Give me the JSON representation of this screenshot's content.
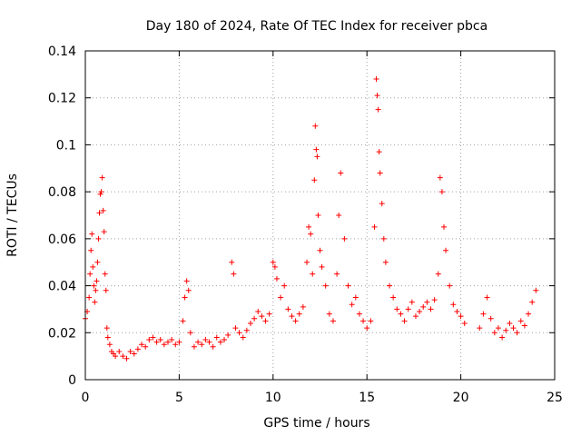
{
  "chart_data": {
    "type": "scatter",
    "title": "Day 180 of 2024, Rate Of TEC Index for receiver pbca",
    "xlabel": "GPS time / hours",
    "ylabel": "ROTI / TECUs",
    "xlim": [
      0,
      25
    ],
    "ylim": [
      0,
      0.14
    ],
    "x_ticks": [
      0,
      5,
      10,
      15,
      20,
      25
    ],
    "x_tick_labels": [
      "0",
      "5",
      "10",
      "15",
      "20",
      "25"
    ],
    "y_ticks": [
      0,
      0.02,
      0.04,
      0.06,
      0.08,
      0.1,
      0.12,
      0.14
    ],
    "y_tick_labels": [
      "0",
      "0.02",
      "0.04",
      "0.06",
      "0.08",
      "0.1",
      "0.12",
      "0.14"
    ],
    "grid": true,
    "marker": "+",
    "color": "#ff0000",
    "series": [
      {
        "name": "ROTI",
        "x": [
          0.0,
          0.1,
          0.2,
          0.25,
          0.3,
          0.35,
          0.4,
          0.45,
          0.5,
          0.55,
          0.6,
          0.65,
          0.7,
          0.75,
          0.8,
          0.85,
          0.9,
          0.95,
          1.0,
          1.05,
          1.1,
          1.15,
          1.2,
          1.3,
          1.4,
          1.5,
          1.6,
          1.8,
          2.0,
          2.2,
          2.4,
          2.6,
          2.8,
          3.0,
          3.2,
          3.4,
          3.6,
          3.8,
          4.0,
          4.2,
          4.4,
          4.6,
          4.8,
          5.0,
          5.2,
          5.3,
          5.4,
          5.5,
          5.6,
          5.8,
          6.0,
          6.2,
          6.4,
          6.6,
          6.8,
          7.0,
          7.2,
          7.4,
          7.6,
          7.8,
          7.9,
          8.0,
          8.2,
          8.4,
          8.6,
          8.8,
          9.0,
          9.2,
          9.4,
          9.6,
          9.8,
          10.0,
          10.1,
          10.2,
          10.4,
          10.6,
          10.8,
          11.0,
          11.2,
          11.4,
          11.6,
          11.8,
          11.9,
          12.0,
          12.1,
          12.2,
          12.25,
          12.3,
          12.35,
          12.4,
          12.5,
          12.6,
          12.8,
          13.0,
          13.2,
          13.4,
          13.5,
          13.6,
          13.8,
          14.0,
          14.2,
          14.4,
          14.6,
          14.8,
          15.0,
          15.2,
          15.4,
          15.5,
          15.55,
          15.6,
          15.65,
          15.7,
          15.8,
          15.9,
          16.0,
          16.2,
          16.4,
          16.6,
          16.8,
          17.0,
          17.2,
          17.4,
          17.6,
          17.8,
          18.0,
          18.2,
          18.4,
          18.6,
          18.8,
          18.9,
          19.0,
          19.1,
          19.2,
          19.4,
          19.6,
          19.8,
          20.0,
          20.2,
          21.0,
          21.2,
          21.4,
          21.6,
          21.8,
          22.0,
          22.2,
          22.4,
          22.6,
          22.8,
          23.0,
          23.2,
          23.4,
          23.6,
          23.8,
          24.0
        ],
        "y": [
          0.026,
          0.029,
          0.035,
          0.045,
          0.055,
          0.062,
          0.048,
          0.04,
          0.033,
          0.038,
          0.042,
          0.05,
          0.06,
          0.071,
          0.079,
          0.08,
          0.086,
          0.072,
          0.063,
          0.045,
          0.038,
          0.022,
          0.018,
          0.015,
          0.012,
          0.011,
          0.01,
          0.012,
          0.01,
          0.009,
          0.012,
          0.011,
          0.013,
          0.015,
          0.014,
          0.017,
          0.018,
          0.016,
          0.017,
          0.015,
          0.016,
          0.017,
          0.015,
          0.016,
          0.025,
          0.035,
          0.042,
          0.038,
          0.02,
          0.014,
          0.016,
          0.015,
          0.017,
          0.016,
          0.014,
          0.018,
          0.016,
          0.017,
          0.019,
          0.05,
          0.045,
          0.022,
          0.02,
          0.018,
          0.021,
          0.024,
          0.026,
          0.029,
          0.027,
          0.025,
          0.028,
          0.05,
          0.048,
          0.043,
          0.035,
          0.04,
          0.03,
          0.027,
          0.025,
          0.028,
          0.031,
          0.05,
          0.065,
          0.062,
          0.045,
          0.085,
          0.108,
          0.098,
          0.095,
          0.07,
          0.055,
          0.048,
          0.04,
          0.028,
          0.025,
          0.045,
          0.07,
          0.088,
          0.06,
          0.04,
          0.032,
          0.035,
          0.028,
          0.025,
          0.022,
          0.025,
          0.065,
          0.128,
          0.121,
          0.115,
          0.097,
          0.088,
          0.075,
          0.06,
          0.05,
          0.04,
          0.035,
          0.03,
          0.028,
          0.025,
          0.03,
          0.033,
          0.027,
          0.029,
          0.031,
          0.033,
          0.03,
          0.034,
          0.045,
          0.086,
          0.08,
          0.065,
          0.055,
          0.04,
          0.032,
          0.029,
          0.027,
          0.024,
          0.022,
          0.028,
          0.035,
          0.026,
          0.02,
          0.022,
          0.018,
          0.021,
          0.024,
          0.022,
          0.02,
          0.025,
          0.023,
          0.028,
          0.033,
          0.038
        ]
      }
    ]
  }
}
